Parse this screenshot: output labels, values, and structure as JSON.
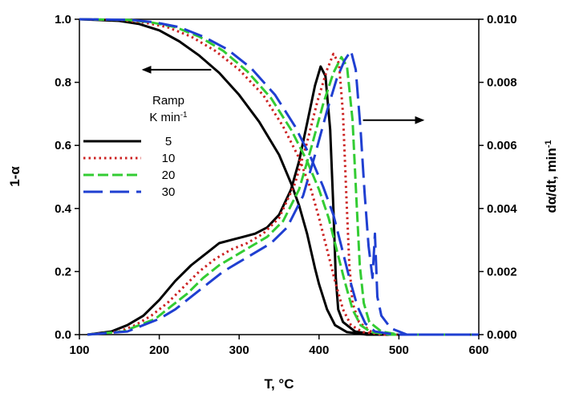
{
  "chart_data": {
    "type": "line",
    "xlabel": "T, °C",
    "ylabel_left": "1-α",
    "ylabel_right": "dα/dt, min",
    "ylabel_right_sup": "-1",
    "xlim": [
      100,
      600
    ],
    "ylim_left": [
      0.0,
      1.0
    ],
    "ylim_right": [
      0.0,
      0.01
    ],
    "x_ticks": [
      "100",
      "200",
      "300",
      "400",
      "500",
      "600"
    ],
    "y_ticks_left": [
      "0.0",
      "0.2",
      "0.4",
      "0.6",
      "0.8",
      "1.0"
    ],
    "y_ticks_right": [
      "0.000",
      "0.002",
      "0.004",
      "0.006",
      "0.008",
      "0.010"
    ],
    "grid": false,
    "legend": {
      "title_line1": "Ramp",
      "title_line2": "K min",
      "title_sup": "-1",
      "placement": "center-left",
      "entries": [
        "5",
        "10",
        "20",
        "30"
      ]
    },
    "series": [
      {
        "name": "5",
        "color": "#000000",
        "dash": "solid",
        "conversion": [
          [
            100,
            1.0
          ],
          [
            150,
            0.995
          ],
          [
            175,
            0.985
          ],
          [
            200,
            0.965
          ],
          [
            225,
            0.93
          ],
          [
            250,
            0.885
          ],
          [
            275,
            0.83
          ],
          [
            300,
            0.76
          ],
          [
            325,
            0.675
          ],
          [
            350,
            0.57
          ],
          [
            365,
            0.48
          ],
          [
            375,
            0.41
          ],
          [
            385,
            0.32
          ],
          [
            395,
            0.21
          ],
          [
            400,
            0.16
          ],
          [
            410,
            0.08
          ],
          [
            420,
            0.03
          ],
          [
            435,
            0.008
          ],
          [
            460,
            0.0
          ],
          [
            600,
            0.0
          ]
        ],
        "rate": [
          [
            110,
            0.0
          ],
          [
            140,
            0.0001
          ],
          [
            160,
            0.0003
          ],
          [
            180,
            0.0006
          ],
          [
            200,
            0.0011
          ],
          [
            220,
            0.0017
          ],
          [
            240,
            0.0022
          ],
          [
            260,
            0.0026
          ],
          [
            275,
            0.0029
          ],
          [
            290,
            0.003
          ],
          [
            305,
            0.0031
          ],
          [
            320,
            0.0032
          ],
          [
            335,
            0.0034
          ],
          [
            350,
            0.0038
          ],
          [
            365,
            0.0046
          ],
          [
            375,
            0.0055
          ],
          [
            385,
            0.0067
          ],
          [
            395,
            0.0079
          ],
          [
            402,
            0.0085
          ],
          [
            408,
            0.0082
          ],
          [
            414,
            0.0065
          ],
          [
            418,
            0.004
          ],
          [
            421,
            0.0018
          ],
          [
            424,
            0.0008
          ],
          [
            430,
            0.0004
          ],
          [
            445,
            0.0001
          ],
          [
            470,
            0.0
          ],
          [
            600,
            0.0
          ]
        ]
      },
      {
        "name": "10",
        "color": "#cc2222",
        "dash": "dotted",
        "conversion": [
          [
            100,
            1.0
          ],
          [
            150,
            0.998
          ],
          [
            180,
            0.99
          ],
          [
            210,
            0.975
          ],
          [
            240,
            0.945
          ],
          [
            270,
            0.9
          ],
          [
            300,
            0.84
          ],
          [
            330,
            0.76
          ],
          [
            355,
            0.66
          ],
          [
            375,
            0.56
          ],
          [
            390,
            0.46
          ],
          [
            400,
            0.37
          ],
          [
            410,
            0.27
          ],
          [
            420,
            0.17
          ],
          [
            430,
            0.08
          ],
          [
            440,
            0.03
          ],
          [
            455,
            0.008
          ],
          [
            480,
            0.0
          ],
          [
            600,
            0.0
          ]
        ],
        "rate": [
          [
            110,
            0.0
          ],
          [
            150,
            0.0001
          ],
          [
            170,
            0.0003
          ],
          [
            190,
            0.0006
          ],
          [
            210,
            0.001
          ],
          [
            230,
            0.0015
          ],
          [
            250,
            0.002
          ],
          [
            270,
            0.0024
          ],
          [
            290,
            0.0027
          ],
          [
            310,
            0.0029
          ],
          [
            330,
            0.0032
          ],
          [
            350,
            0.0037
          ],
          [
            370,
            0.0048
          ],
          [
            385,
            0.0061
          ],
          [
            398,
            0.0074
          ],
          [
            410,
            0.0084
          ],
          [
            418,
            0.0089
          ],
          [
            425,
            0.0086
          ],
          [
            430,
            0.007
          ],
          [
            434,
            0.0045
          ],
          [
            438,
            0.0022
          ],
          [
            442,
            0.001
          ],
          [
            450,
            0.0004
          ],
          [
            465,
            0.0001
          ],
          [
            490,
            0.0
          ],
          [
            600,
            0.0
          ]
        ]
      },
      {
        "name": "20",
        "color": "#33cc33",
        "dash": "dashed",
        "conversion": [
          [
            100,
            1.0
          ],
          [
            160,
            0.998
          ],
          [
            190,
            0.99
          ],
          [
            220,
            0.975
          ],
          [
            250,
            0.945
          ],
          [
            280,
            0.9
          ],
          [
            310,
            0.835
          ],
          [
            340,
            0.75
          ],
          [
            365,
            0.65
          ],
          [
            385,
            0.55
          ],
          [
            400,
            0.46
          ],
          [
            412,
            0.37
          ],
          [
            422,
            0.27
          ],
          [
            432,
            0.17
          ],
          [
            442,
            0.08
          ],
          [
            452,
            0.03
          ],
          [
            465,
            0.008
          ],
          [
            490,
            0.0
          ],
          [
            600,
            0.0
          ]
        ],
        "rate": [
          [
            110,
            0.0
          ],
          [
            155,
            0.0001
          ],
          [
            175,
            0.0003
          ],
          [
            195,
            0.0005
          ],
          [
            215,
            0.0009
          ],
          [
            235,
            0.0013
          ],
          [
            255,
            0.0018
          ],
          [
            275,
            0.0022
          ],
          [
            295,
            0.0025
          ],
          [
            315,
            0.0028
          ],
          [
            335,
            0.0031
          ],
          [
            355,
            0.0036
          ],
          [
            375,
            0.0046
          ],
          [
            390,
            0.0059
          ],
          [
            405,
            0.0073
          ],
          [
            418,
            0.0083
          ],
          [
            428,
            0.0088
          ],
          [
            435,
            0.0085
          ],
          [
            442,
            0.0068
          ],
          [
            447,
            0.0042
          ],
          [
            451,
            0.0022
          ],
          [
            456,
            0.001
          ],
          [
            463,
            0.0004
          ],
          [
            478,
            0.0001
          ],
          [
            500,
            0.0
          ],
          [
            600,
            0.0
          ]
        ]
      },
      {
        "name": "30",
        "color": "#1f3fd1",
        "dash": "longdash",
        "conversion": [
          [
            100,
            1.0
          ],
          [
            165,
            0.998
          ],
          [
            195,
            0.99
          ],
          [
            225,
            0.975
          ],
          [
            255,
            0.945
          ],
          [
            285,
            0.905
          ],
          [
            315,
            0.845
          ],
          [
            345,
            0.76
          ],
          [
            370,
            0.66
          ],
          [
            390,
            0.56
          ],
          [
            405,
            0.47
          ],
          [
            418,
            0.38
          ],
          [
            428,
            0.28
          ],
          [
            438,
            0.18
          ],
          [
            448,
            0.09
          ],
          [
            458,
            0.035
          ],
          [
            470,
            0.01
          ],
          [
            495,
            0.0
          ],
          [
            600,
            0.0
          ]
        ],
        "rate": [
          [
            110,
            0.0
          ],
          [
            160,
            0.0001
          ],
          [
            180,
            0.0003
          ],
          [
            200,
            0.0005
          ],
          [
            220,
            0.0008
          ],
          [
            240,
            0.0012
          ],
          [
            260,
            0.0016
          ],
          [
            280,
            0.002
          ],
          [
            300,
            0.0023
          ],
          [
            320,
            0.0026
          ],
          [
            340,
            0.0029
          ],
          [
            360,
            0.0034
          ],
          [
            380,
            0.0044
          ],
          [
            395,
            0.0057
          ],
          [
            410,
            0.0071
          ],
          [
            422,
            0.0081
          ],
          [
            432,
            0.0087
          ],
          [
            440,
            0.009
          ],
          [
            446,
            0.0084
          ],
          [
            452,
            0.0065
          ],
          [
            457,
            0.0045
          ],
          [
            462,
            0.0028
          ],
          [
            467,
            0.0018
          ],
          [
            470,
            0.0032
          ],
          [
            473,
            0.0012
          ],
          [
            478,
            0.0006
          ],
          [
            490,
            0.0002
          ],
          [
            510,
            0.0
          ],
          [
            600,
            0.0
          ]
        ]
      }
    ],
    "annotations": [
      {
        "type": "arrow",
        "direction": "left",
        "x_from": 265,
        "x_to": 180,
        "y_left": 0.84
      },
      {
        "type": "arrow",
        "direction": "right",
        "x_from": 455,
        "x_to": 530,
        "y_left": 0.68
      }
    ]
  }
}
